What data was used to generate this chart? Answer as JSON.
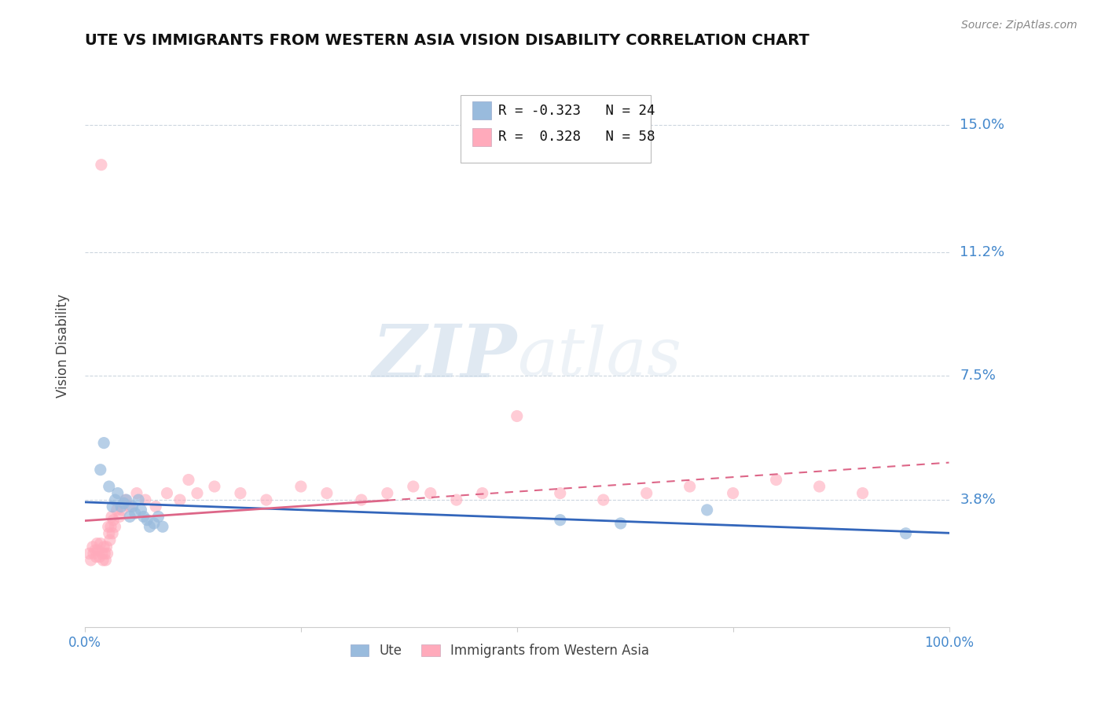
{
  "title": "UTE VS IMMIGRANTS FROM WESTERN ASIA VISION DISABILITY CORRELATION CHART",
  "source": "Source: ZipAtlas.com",
  "ylabel": "Vision Disability",
  "xlim": [
    0.0,
    1.0
  ],
  "ylim": [
    0.0,
    0.168
  ],
  "yticks": [
    0.038,
    0.075,
    0.112,
    0.15
  ],
  "ytick_labels": [
    "3.8%",
    "7.5%",
    "11.2%",
    "15.0%"
  ],
  "title_fontsize": 14,
  "color_blue": "#99bbdd",
  "color_pink": "#ffaabb",
  "color_blue_line": "#3366bb",
  "color_pink_line": "#dd6688",
  "color_axis_labels": "#4488cc",
  "background_color": "#ffffff",
  "watermark_zip": "ZIP",
  "watermark_atlas": "atlas",
  "ute_x": [
    0.018,
    0.022,
    0.028,
    0.032,
    0.035,
    0.038,
    0.042,
    0.045,
    0.048,
    0.052,
    0.055,
    0.058,
    0.062,
    0.065,
    0.068,
    0.072,
    0.075,
    0.08,
    0.085,
    0.09,
    0.55,
    0.62,
    0.72,
    0.95
  ],
  "ute_y": [
    0.047,
    0.055,
    0.042,
    0.036,
    0.038,
    0.04,
    0.036,
    0.037,
    0.038,
    0.033,
    0.036,
    0.034,
    0.038,
    0.035,
    0.033,
    0.032,
    0.03,
    0.031,
    0.033,
    0.03,
    0.032,
    0.031,
    0.035,
    0.028
  ],
  "immig_x": [
    0.005,
    0.007,
    0.009,
    0.01,
    0.012,
    0.013,
    0.014,
    0.015,
    0.017,
    0.018,
    0.019,
    0.02,
    0.021,
    0.022,
    0.023,
    0.024,
    0.025,
    0.026,
    0.027,
    0.028,
    0.029,
    0.03,
    0.031,
    0.032,
    0.033,
    0.035,
    0.037,
    0.04,
    0.043,
    0.047,
    0.052,
    0.06,
    0.07,
    0.082,
    0.095,
    0.11,
    0.13,
    0.15,
    0.18,
    0.21,
    0.25,
    0.28,
    0.32,
    0.35,
    0.38,
    0.4,
    0.43,
    0.46,
    0.5,
    0.55,
    0.6,
    0.65,
    0.7,
    0.75,
    0.8,
    0.85,
    0.9,
    0.12
  ],
  "immig_y": [
    0.022,
    0.02,
    0.024,
    0.022,
    0.023,
    0.021,
    0.025,
    0.023,
    0.021,
    0.025,
    0.138,
    0.022,
    0.02,
    0.024,
    0.022,
    0.02,
    0.024,
    0.022,
    0.03,
    0.028,
    0.026,
    0.03,
    0.033,
    0.028,
    0.032,
    0.03,
    0.035,
    0.033,
    0.035,
    0.038,
    0.036,
    0.04,
    0.038,
    0.036,
    0.04,
    0.038,
    0.04,
    0.042,
    0.04,
    0.038,
    0.042,
    0.04,
    0.038,
    0.04,
    0.042,
    0.04,
    0.038,
    0.04,
    0.063,
    0.04,
    0.038,
    0.04,
    0.042,
    0.04,
    0.044,
    0.042,
    0.04,
    0.044
  ]
}
